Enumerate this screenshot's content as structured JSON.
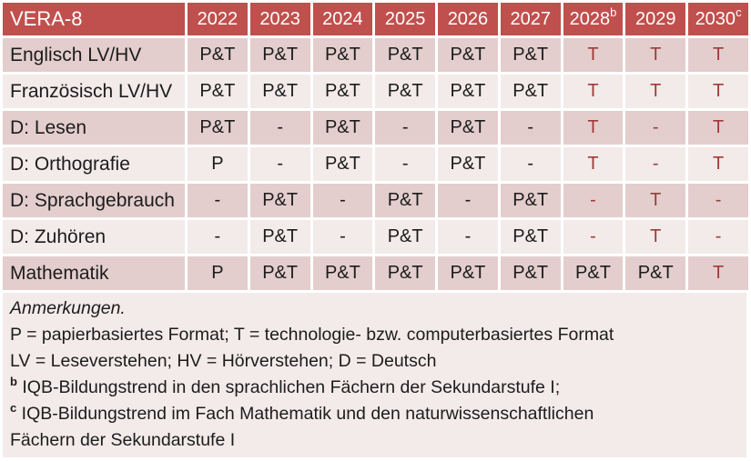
{
  "colors": {
    "header_bg": "#c0504d",
    "header_text": "#ffffff",
    "band_dark": "#e3cecd",
    "band_light": "#f3eaea",
    "notes_bg": "#f3eaea",
    "accent_text": "#9e3b38",
    "body_text": "#1c1c1c"
  },
  "table": {
    "title": "VERA-8",
    "columns": [
      {
        "label": "2022",
        "sup": ""
      },
      {
        "label": "2023",
        "sup": ""
      },
      {
        "label": "2024",
        "sup": ""
      },
      {
        "label": "2025",
        "sup": ""
      },
      {
        "label": "2026",
        "sup": ""
      },
      {
        "label": "2027",
        "sup": ""
      },
      {
        "label": "2028",
        "sup": "b"
      },
      {
        "label": "2029",
        "sup": ""
      },
      {
        "label": "2030",
        "sup": "c"
      }
    ],
    "rows": [
      {
        "label": "Englisch LV/HV",
        "cells": [
          {
            "t": "P&T",
            "red": false
          },
          {
            "t": "P&T",
            "red": false
          },
          {
            "t": "P&T",
            "red": false
          },
          {
            "t": "P&T",
            "red": false
          },
          {
            "t": "P&T",
            "red": false
          },
          {
            "t": "P&T",
            "red": false
          },
          {
            "t": "T",
            "red": true
          },
          {
            "t": "T",
            "red": true
          },
          {
            "t": "T",
            "red": true
          }
        ]
      },
      {
        "label": "Französisch LV/HV",
        "cells": [
          {
            "t": "P&T",
            "red": false
          },
          {
            "t": "P&T",
            "red": false
          },
          {
            "t": "P&T",
            "red": false
          },
          {
            "t": "P&T",
            "red": false
          },
          {
            "t": "P&T",
            "red": false
          },
          {
            "t": "P&T",
            "red": false
          },
          {
            "t": "T",
            "red": true
          },
          {
            "t": "T",
            "red": true
          },
          {
            "t": "T",
            "red": true
          }
        ]
      },
      {
        "label": "D: Lesen",
        "cells": [
          {
            "t": "P&T",
            "red": false
          },
          {
            "t": "-",
            "red": false
          },
          {
            "t": "P&T",
            "red": false
          },
          {
            "t": "-",
            "red": false
          },
          {
            "t": "P&T",
            "red": false
          },
          {
            "t": "-",
            "red": false
          },
          {
            "t": "T",
            "red": true
          },
          {
            "t": "-",
            "red": true
          },
          {
            "t": "T",
            "red": true
          }
        ]
      },
      {
        "label": "D: Orthografie",
        "cells": [
          {
            "t": "P",
            "red": false
          },
          {
            "t": "-",
            "red": false
          },
          {
            "t": "P&T",
            "red": false
          },
          {
            "t": "-",
            "red": false
          },
          {
            "t": "P&T",
            "red": false
          },
          {
            "t": "-",
            "red": false
          },
          {
            "t": "T",
            "red": true
          },
          {
            "t": "-",
            "red": true
          },
          {
            "t": "T",
            "red": true
          }
        ]
      },
      {
        "label": "D: Sprachgebrauch",
        "cells": [
          {
            "t": "-",
            "red": false
          },
          {
            "t": "P&T",
            "red": false
          },
          {
            "t": "-",
            "red": false
          },
          {
            "t": "P&T",
            "red": false
          },
          {
            "t": "-",
            "red": false
          },
          {
            "t": "P&T",
            "red": false
          },
          {
            "t": "-",
            "red": true
          },
          {
            "t": "T",
            "red": true
          },
          {
            "t": "-",
            "red": true
          }
        ]
      },
      {
        "label": "D: Zuhören",
        "cells": [
          {
            "t": "-",
            "red": false
          },
          {
            "t": "P&T",
            "red": false
          },
          {
            "t": "-",
            "red": false
          },
          {
            "t": "P&T",
            "red": false
          },
          {
            "t": "-",
            "red": false
          },
          {
            "t": "P&T",
            "red": false
          },
          {
            "t": "-",
            "red": true
          },
          {
            "t": "T",
            "red": true
          },
          {
            "t": "-",
            "red": true
          }
        ]
      },
      {
        "label": "Mathematik",
        "cells": [
          {
            "t": "P",
            "red": false
          },
          {
            "t": "P&T",
            "red": false
          },
          {
            "t": "P&T",
            "red": false
          },
          {
            "t": "P&T",
            "red": false
          },
          {
            "t": "P&T",
            "red": false
          },
          {
            "t": "P&T",
            "red": false
          },
          {
            "t": "P&T",
            "red": false
          },
          {
            "t": "P&T",
            "red": false
          },
          {
            "t": "T",
            "red": true
          }
        ]
      }
    ]
  },
  "notes": {
    "lines": [
      {
        "sup": "",
        "italic": true,
        "text": "Anmerkungen."
      },
      {
        "sup": "",
        "italic": false,
        "text": "P = papierbasiertes Format; T = technologie- bzw. computerbasiertes Format"
      },
      {
        "sup": "",
        "italic": false,
        "text": "LV = Leseverstehen; HV = Hörverstehen; D = Deutsch"
      },
      {
        "sup": "b",
        "italic": false,
        "text": "IQB-Bildungstrend in den sprachlichen Fächern der Sekundarstufe I;"
      },
      {
        "sup": "c",
        "italic": false,
        "text": "IQB-Bildungstrend im Fach Mathematik und den naturwissenschaftlichen Fächern der Sekundarstufe I"
      }
    ]
  }
}
